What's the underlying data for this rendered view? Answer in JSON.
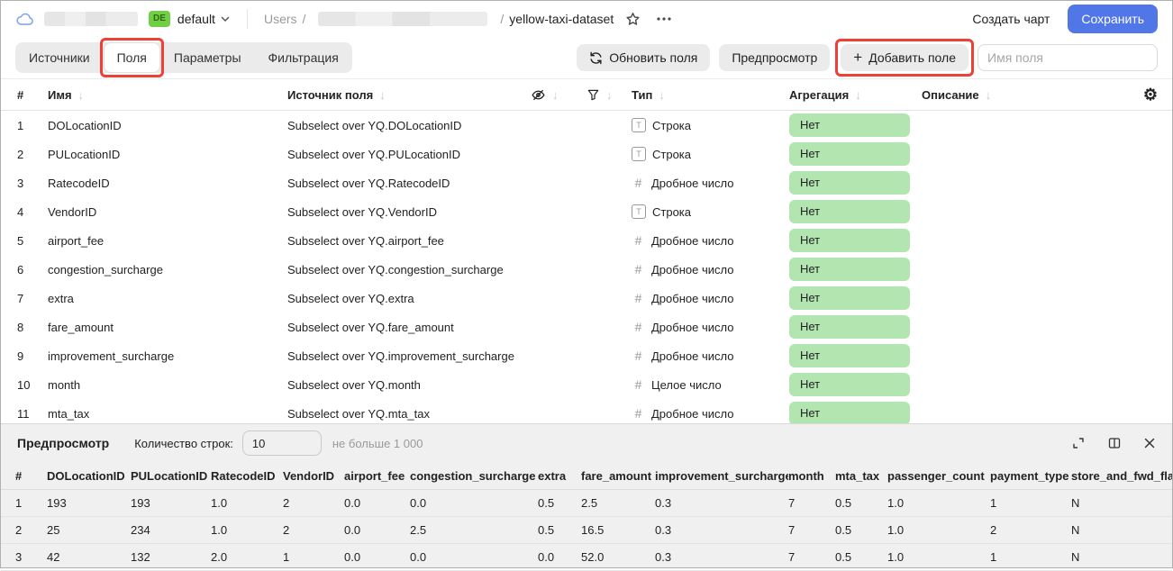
{
  "header": {
    "badge": "DE",
    "env": "default",
    "breadcrumb_root": "Users",
    "breadcrumb_sep": "/",
    "dataset_name": "yellow-taxi-dataset",
    "create_chart_label": "Создать чарт",
    "save_label": "Сохранить"
  },
  "toolbar": {
    "tabs": [
      {
        "label": "Источники",
        "active": false
      },
      {
        "label": "Поля",
        "active": true,
        "annotated": true
      },
      {
        "label": "Параметры",
        "active": false
      },
      {
        "label": "Фильтрация",
        "active": false
      }
    ],
    "refresh_label": "Обновить поля",
    "preview_label": "Предпросмотр",
    "add_field_label": "Добавить поле",
    "field_name_placeholder": "Имя поля"
  },
  "fields_table": {
    "header": {
      "index": "#",
      "name": "Имя",
      "source": "Источник поля",
      "type": "Тип",
      "aggregation": "Агрегация",
      "description": "Описание"
    },
    "rows": [
      {
        "n": "1",
        "name": "DOLocationID",
        "source": "Subselect over YQ.DOLocationID",
        "type_kind": "string",
        "type": "Строка",
        "aggregation": "Нет"
      },
      {
        "n": "2",
        "name": "PULocationID",
        "source": "Subselect over YQ.PULocationID",
        "type_kind": "string",
        "type": "Строка",
        "aggregation": "Нет"
      },
      {
        "n": "3",
        "name": "RatecodeID",
        "source": "Subselect over YQ.RatecodeID",
        "type_kind": "number",
        "type": "Дробное число",
        "aggregation": "Нет"
      },
      {
        "n": "4",
        "name": "VendorID",
        "source": "Subselect over YQ.VendorID",
        "type_kind": "string",
        "type": "Строка",
        "aggregation": "Нет"
      },
      {
        "n": "5",
        "name": "airport_fee",
        "source": "Subselect over YQ.airport_fee",
        "type_kind": "number",
        "type": "Дробное число",
        "aggregation": "Нет"
      },
      {
        "n": "6",
        "name": "congestion_surcharge",
        "source": "Subselect over YQ.congestion_surcharge",
        "type_kind": "number",
        "type": "Дробное число",
        "aggregation": "Нет"
      },
      {
        "n": "7",
        "name": "extra",
        "source": "Subselect over YQ.extra",
        "type_kind": "number",
        "type": "Дробное число",
        "aggregation": "Нет"
      },
      {
        "n": "8",
        "name": "fare_amount",
        "source": "Subselect over YQ.fare_amount",
        "type_kind": "number",
        "type": "Дробное число",
        "aggregation": "Нет"
      },
      {
        "n": "9",
        "name": "improvement_surcharge",
        "source": "Subselect over YQ.improvement_surcharge",
        "type_kind": "number",
        "type": "Дробное число",
        "aggregation": "Нет"
      },
      {
        "n": "10",
        "name": "month",
        "source": "Subselect over YQ.month",
        "type_kind": "number",
        "type": "Целое число",
        "aggregation": "Нет"
      },
      {
        "n": "11",
        "name": "mta_tax",
        "source": "Subselect over YQ.mta_tax",
        "type_kind": "number",
        "type": "Дробное число",
        "aggregation": "Нет"
      }
    ]
  },
  "preview_panel": {
    "title": "Предпросмотр",
    "rows_count_label": "Количество строк:",
    "rows_count_value": "10",
    "rows_count_hint": "не больше 1 000",
    "columns": [
      "#",
      "DOLocationID",
      "PULocationID",
      "RatecodeID",
      "VendorID",
      "airport_fee",
      "congestion_surcharge",
      "extra",
      "fare_amount",
      "improvement_surcharge",
      "month",
      "mta_tax",
      "passenger_count",
      "payment_type",
      "store_and_fwd_flag"
    ],
    "rows": [
      [
        "1",
        "193",
        "193",
        "1.0",
        "2",
        "0.0",
        "0.0",
        "0.5",
        "2.5",
        "0.3",
        "7",
        "0.5",
        "1.0",
        "1",
        "N"
      ],
      [
        "2",
        "25",
        "234",
        "1.0",
        "2",
        "0.0",
        "2.5",
        "0.5",
        "16.5",
        "0.3",
        "7",
        "0.5",
        "1.0",
        "2",
        "N"
      ],
      [
        "3",
        "42",
        "132",
        "2.0",
        "1",
        "0.0",
        "0.0",
        "0.0",
        "52.0",
        "0.3",
        "7",
        "0.5",
        "1.0",
        "1",
        "N"
      ]
    ]
  },
  "icons": {
    "sort_arrow": "↓",
    "plus": "+",
    "string_type": "T",
    "number_type": "#",
    "gear": "⚙"
  },
  "colors": {
    "accent_blue": "#5076e8",
    "badge_green": "#70cf44",
    "aggregation_pill_green": "#b2e5af",
    "annotation_red": "#ee4035",
    "button_gray": "#ebebeb",
    "panel_gray": "#f0f0f0"
  }
}
